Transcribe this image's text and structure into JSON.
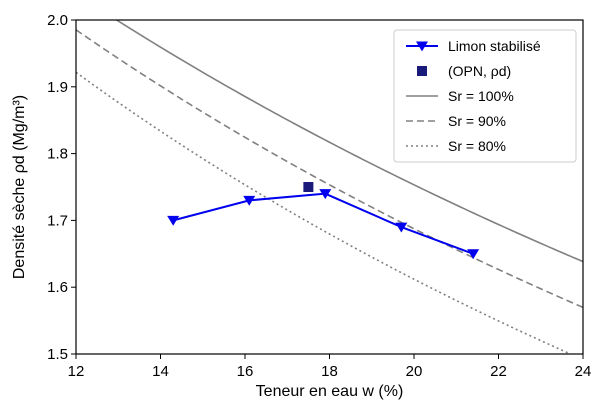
{
  "chart_data": {
    "type": "line",
    "xlabel": "Teneur en eau w (%)",
    "ylabel": "Densité sèche ρd (Mg/m³)",
    "xlim": [
      12,
      24
    ],
    "ylim": [
      1.5,
      2.0
    ],
    "xticks": [
      "12",
      "14",
      "16",
      "18",
      "20",
      "22",
      "24"
    ],
    "yticks": [
      "1.5",
      "1.6",
      "1.7",
      "1.8",
      "1.9",
      "2.0"
    ],
    "grid": false,
    "legend_position": "top-right",
    "series": [
      {
        "name": "Limon stabilisé",
        "kind": "line-with-markers",
        "marker": "triangle-down",
        "color": "#0000ee",
        "x": [
          14.3,
          16.1,
          17.9,
          19.7,
          21.4
        ],
        "y": [
          1.7,
          1.73,
          1.74,
          1.69,
          1.65
        ]
      },
      {
        "name": "(OPN, ρd)",
        "kind": "marker",
        "marker": "square",
        "color": "#1a1a7a",
        "x": [
          17.5
        ],
        "y": [
          1.75
        ]
      },
      {
        "name": "Sr = 100%",
        "kind": "saturation-curve",
        "sr": 1.0,
        "style": "solid",
        "color": "#808080",
        "x": [
          12,
          14,
          16,
          18,
          20,
          22,
          24
        ],
        "y": [
          2.011,
          1.924,
          1.844,
          1.77,
          1.701,
          1.638,
          1.579
        ]
      },
      {
        "name": "Sr = 90%",
        "kind": "saturation-curve",
        "sr": 0.9,
        "style": "dashed",
        "color": "#808080",
        "x": [
          12,
          14,
          16,
          18,
          20,
          22,
          24
        ],
        "y": [
          1.955,
          1.864,
          1.781,
          1.705,
          1.635,
          1.571,
          1.512
        ]
      },
      {
        "name": "Sr = 80%",
        "kind": "saturation-curve",
        "sr": 0.8,
        "style": "dotted",
        "color": "#808080",
        "x": [
          12,
          14,
          16,
          18,
          20,
          22,
          24
        ],
        "y": [
          1.892,
          1.797,
          1.712,
          1.634,
          1.563,
          1.498,
          1.439
        ]
      }
    ]
  }
}
